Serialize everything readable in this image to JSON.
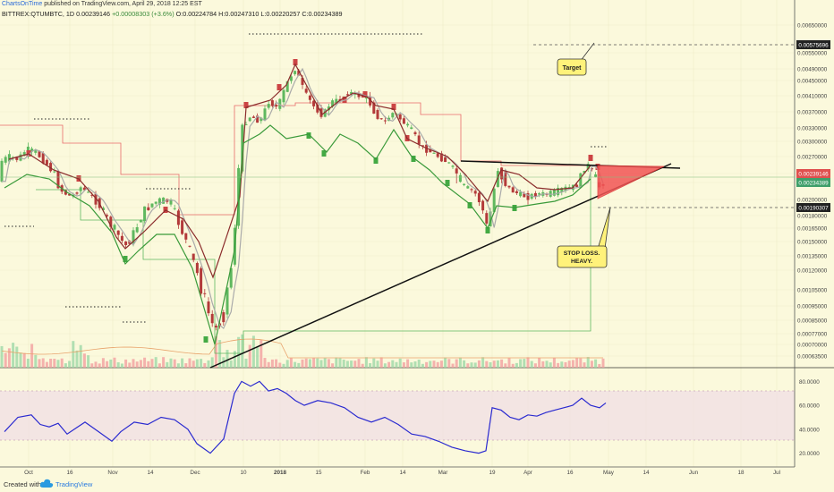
{
  "header": {
    "author": "ChartsOnTime",
    "published": "published on TradingView.com, April 29, 2018 12:25 EST",
    "symbol": "BITTREX:QTUMBTC, 1D",
    "last": "0.00239146",
    "change": "+0.00008303 (+3.6%)",
    "open": "O:0.00224784",
    "high": "H:0.00247310",
    "low": "L:0.00220257",
    "close": "C:0.00234389"
  },
  "price_axis": {
    "ticks": [
      "0.00650000",
      "0.00590000",
      "0.00550000",
      "0.00490000",
      "0.00450000",
      "0.00410000",
      "0.00370000",
      "0.00330000",
      "0.00300000",
      "0.00270000",
      "0.00239146",
      "0.00234389",
      "0.00200000",
      "0.00190307",
      "0.00180000",
      "0.00165000",
      "0.00150000",
      "0.00135000",
      "0.00120000",
      "0.00105000",
      "0.00095000",
      "0.00085000",
      "0.00077000",
      "0.00070000",
      "0.00063500"
    ],
    "badges": {
      "target": "0.00575696",
      "last": "0.00239146",
      "close": "0.00234389",
      "stop": "0.00190307"
    }
  },
  "rsi_axis": {
    "ticks": [
      "80.0000",
      "60.0000",
      "40.0000",
      "20.0000"
    ]
  },
  "time_axis": {
    "labels": [
      "Oct",
      "16",
      "Nov",
      "14",
      "Dec",
      "10",
      "2018",
      "15",
      "Feb",
      "14",
      "Mar",
      "19",
      "Apr",
      "16",
      "May",
      "14",
      "Jun",
      "18",
      "Jul"
    ]
  },
  "annotations": {
    "target": "Target",
    "stop": [
      "STOP LOSS.",
      "HEAVY."
    ]
  },
  "colors": {
    "background": "#fbf9dc",
    "up": "#5fb85f",
    "down": "#b33a3a",
    "rsi": "#2a2ad0",
    "triangle": "#f25555"
  },
  "footer": {
    "created": "Created with",
    "brand": "TradingView"
  },
  "chart_data": {
    "type": "candlestick",
    "title": "BITTREX:QTUMBTC, 1D",
    "price_range": [
      0.000635,
      0.0065
    ],
    "rsi_range": [
      10,
      90
    ],
    "rsi_band": [
      30,
      70
    ],
    "price_path": [
      [
        0,
        0.0026
      ],
      [
        10,
        0.0027
      ],
      [
        20,
        0.00265
      ],
      [
        30,
        0.00285
      ],
      [
        40,
        0.00278
      ],
      [
        50,
        0.0026
      ],
      [
        60,
        0.0024
      ],
      [
        70,
        0.00215
      ],
      [
        80,
        0.00205
      ],
      [
        90,
        0.00225
      ],
      [
        100,
        0.0021
      ],
      [
        110,
        0.00195
      ],
      [
        120,
        0.00175
      ],
      [
        130,
        0.0016
      ],
      [
        140,
        0.00145
      ],
      [
        150,
        0.0016
      ],
      [
        160,
        0.00185
      ],
      [
        170,
        0.00195
      ],
      [
        180,
        0.002
      ],
      [
        190,
        0.00198
      ],
      [
        200,
        0.0017
      ],
      [
        210,
        0.00145
      ],
      [
        220,
        0.00118
      ],
      [
        230,
        0.00095
      ],
      [
        240,
        0.00078
      ],
      [
        250,
        0.0009
      ],
      [
        260,
        0.0013
      ],
      [
        265,
        0.0021
      ],
      [
        270,
        0.0033
      ],
      [
        280,
        0.0036
      ],
      [
        290,
        0.00345
      ],
      [
        300,
        0.00395
      ],
      [
        310,
        0.0038
      ],
      [
        320,
        0.0044
      ],
      [
        330,
        0.0049
      ],
      [
        340,
        0.0042
      ],
      [
        350,
        0.00385
      ],
      [
        360,
        0.0036
      ],
      [
        370,
        0.00395
      ],
      [
        380,
        0.004
      ],
      [
        390,
        0.0042
      ],
      [
        400,
        0.0041
      ],
      [
        410,
        0.00405
      ],
      [
        420,
        0.0036
      ],
      [
        430,
        0.00345
      ],
      [
        440,
        0.0037
      ],
      [
        450,
        0.00345
      ],
      [
        460,
        0.00325
      ],
      [
        470,
        0.0029
      ],
      [
        480,
        0.0028
      ],
      [
        490,
        0.0027
      ],
      [
        500,
        0.0026
      ],
      [
        510,
        0.0024
      ],
      [
        520,
        0.00225
      ],
      [
        530,
        0.00215
      ],
      [
        540,
        0.00185
      ],
      [
        545,
        0.00162
      ],
      [
        550,
        0.002
      ],
      [
        555,
        0.0025
      ],
      [
        560,
        0.0024
      ],
      [
        570,
        0.0022
      ],
      [
        580,
        0.0021
      ],
      [
        590,
        0.00205
      ],
      [
        600,
        0.00212
      ],
      [
        610,
        0.0021
      ],
      [
        620,
        0.00215
      ],
      [
        630,
        0.00222
      ],
      [
        640,
        0.00225
      ],
      [
        650,
        0.00235
      ],
      [
        655,
        0.0026
      ],
      [
        660,
        0.00245
      ],
      [
        670,
        0.00225
      ],
      [
        675,
        0.00235
      ]
    ],
    "rsi": [
      [
        5,
        38
      ],
      [
        20,
        50
      ],
      [
        35,
        52
      ],
      [
        45,
        44
      ],
      [
        55,
        42
      ],
      [
        65,
        45
      ],
      [
        75,
        36
      ],
      [
        85,
        41
      ],
      [
        95,
        46
      ],
      [
        110,
        38
      ],
      [
        125,
        30
      ],
      [
        135,
        38
      ],
      [
        150,
        46
      ],
      [
        165,
        44
      ],
      [
        180,
        50
      ],
      [
        195,
        48
      ],
      [
        210,
        40
      ],
      [
        220,
        28
      ],
      [
        235,
        20
      ],
      [
        250,
        32
      ],
      [
        262,
        70
      ],
      [
        270,
        80
      ],
      [
        280,
        76
      ],
      [
        290,
        80
      ],
      [
        300,
        72
      ],
      [
        310,
        74
      ],
      [
        320,
        70
      ],
      [
        330,
        64
      ],
      [
        340,
        60
      ],
      [
        355,
        64
      ],
      [
        370,
        62
      ],
      [
        385,
        58
      ],
      [
        400,
        50
      ],
      [
        415,
        46
      ],
      [
        430,
        50
      ],
      [
        445,
        44
      ],
      [
        460,
        36
      ],
      [
        475,
        34
      ],
      [
        490,
        30
      ],
      [
        505,
        25
      ],
      [
        520,
        22
      ],
      [
        535,
        20
      ],
      [
        543,
        22
      ],
      [
        550,
        58
      ],
      [
        560,
        56
      ],
      [
        570,
        50
      ],
      [
        580,
        48
      ],
      [
        590,
        52
      ],
      [
        600,
        51
      ],
      [
        610,
        54
      ],
      [
        620,
        56
      ],
      [
        630,
        58
      ],
      [
        640,
        60
      ],
      [
        650,
        66
      ],
      [
        660,
        60
      ],
      [
        670,
        58
      ],
      [
        677,
        62
      ]
    ],
    "trendlines": {
      "support": [
        [
          0.00063,
          235
        ],
        [
          0.00265,
          750
        ]
      ],
      "resistance": [
        [
          0.00265,
          515
        ],
        [
          0.0025,
          760
        ]
      ]
    },
    "levels": {
      "target": 0.00575696,
      "stop": 0.00190307
    }
  }
}
